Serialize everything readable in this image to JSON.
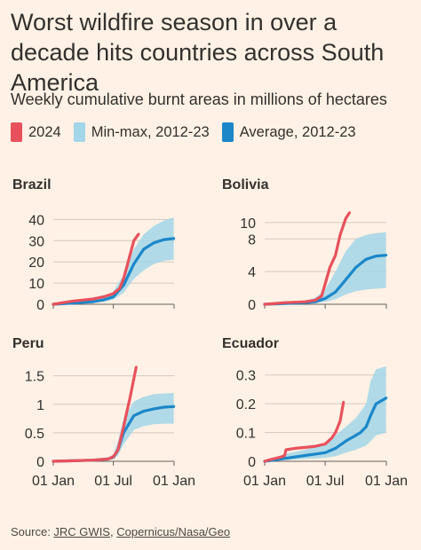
{
  "title": "Worst wildfire season in over a decade hits countries across South America",
  "subtitle": "Weekly cumulative burnt areas in millions of hectares",
  "colors": {
    "series_2024": "#e8515c",
    "minmax": "#a2d6e8",
    "average": "#1b87c9",
    "grid": "#d3c9c0",
    "background": "#fff1e5"
  },
  "legend": [
    {
      "label": "2024",
      "color": "#e8515c"
    },
    {
      "label": "Min-max, 2012-23",
      "color": "#a2d6e8"
    },
    {
      "label": "Average, 2012-23",
      "color": "#1b87c9"
    }
  ],
  "source": {
    "prefix": "Source: ",
    "link1": "JRC GWIS",
    "sep": ", ",
    "link2": "Copernicus/Nasa/Geo"
  },
  "chart_data": [
    {
      "type": "line",
      "title": "Brazil",
      "x_ticks": [
        "01 Jan",
        "01 Jul",
        "01 Jan"
      ],
      "x_range": [
        "2024-01-01",
        "2025-01-01"
      ],
      "y_ticks": [
        "0",
        "10",
        "20",
        "30",
        "40"
      ],
      "y_tick_values": [
        0,
        10,
        20,
        30,
        40
      ],
      "ylim": [
        0,
        41
      ],
      "series": [
        {
          "name": "2024",
          "x": [
            "2024-01-01",
            "2024-02-01",
            "2024-03-01",
            "2024-04-01",
            "2024-05-01",
            "2024-06-01",
            "2024-07-01",
            "2024-07-20",
            "2024-08-01",
            "2024-08-15",
            "2024-09-01",
            "2024-09-15"
          ],
          "values": [
            0.0,
            0.8,
            1.5,
            2.0,
            2.5,
            3.5,
            5.0,
            7.5,
            12.0,
            20.0,
            30.0,
            33.0
          ]
        },
        {
          "name": "Average, 2012-23",
          "x": [
            "2024-01-01",
            "2024-02-01",
            "2024-03-01",
            "2024-04-01",
            "2024-05-01",
            "2024-06-01",
            "2024-07-01",
            "2024-08-01",
            "2024-09-01",
            "2024-10-01",
            "2024-11-01",
            "2024-12-01",
            "2024-12-31"
          ],
          "values": [
            0.0,
            0.3,
            0.6,
            0.9,
            1.2,
            2.0,
            3.5,
            9.0,
            19.0,
            26.0,
            29.0,
            30.5,
            31.0
          ]
        },
        {
          "name": "Min-max, 2012-23",
          "x": [
            "2024-01-01",
            "2024-03-01",
            "2024-05-01",
            "2024-06-01",
            "2024-07-01",
            "2024-08-01",
            "2024-09-01",
            "2024-10-01",
            "2024-11-01",
            "2024-12-01",
            "2024-12-31"
          ],
          "min": [
            0.0,
            0.3,
            0.8,
            1.3,
            2.2,
            5.5,
            12.0,
            16.0,
            19.0,
            20.5,
            21.0
          ],
          "max": [
            0.0,
            0.9,
            1.8,
            3.0,
            6.0,
            14.0,
            26.0,
            33.0,
            37.0,
            39.5,
            41.0
          ]
        }
      ]
    },
    {
      "type": "line",
      "title": "Bolivia",
      "x_ticks": [
        "01 Jan",
        "01 Jul",
        "01 Jan"
      ],
      "x_range": [
        "2024-01-01",
        "2025-01-01"
      ],
      "y_ticks": [
        "0",
        "4",
        "8",
        "10"
      ],
      "y_tick_values": [
        0,
        4,
        8,
        10
      ],
      "ylim": [
        0,
        11.5
      ],
      "series": [
        {
          "name": "2024",
          "x": [
            "2024-01-01",
            "2024-02-01",
            "2024-03-01",
            "2024-04-01",
            "2024-05-01",
            "2024-06-01",
            "2024-06-20",
            "2024-07-01",
            "2024-07-15",
            "2024-08-01",
            "2024-08-15",
            "2024-09-01",
            "2024-09-12"
          ],
          "values": [
            0.0,
            0.1,
            0.2,
            0.25,
            0.3,
            0.5,
            1.0,
            2.5,
            4.5,
            6.0,
            8.5,
            10.5,
            11.2
          ]
        },
        {
          "name": "Average, 2012-23",
          "x": [
            "2024-01-01",
            "2024-03-01",
            "2024-05-01",
            "2024-06-01",
            "2024-07-01",
            "2024-08-01",
            "2024-09-01",
            "2024-10-01",
            "2024-11-01",
            "2024-12-01",
            "2024-12-31"
          ],
          "values": [
            0.0,
            0.1,
            0.2,
            0.3,
            0.7,
            1.5,
            3.0,
            4.5,
            5.5,
            5.9,
            6.0
          ]
        },
        {
          "name": "Min-max, 2012-23",
          "x": [
            "2024-01-01",
            "2024-03-01",
            "2024-05-01",
            "2024-06-01",
            "2024-07-01",
            "2024-08-01",
            "2024-09-01",
            "2024-10-01",
            "2024-11-01",
            "2024-12-01",
            "2024-12-31"
          ],
          "min": [
            0.0,
            0.05,
            0.1,
            0.15,
            0.3,
            0.6,
            1.2,
            1.6,
            1.8,
            1.9,
            2.0
          ],
          "max": [
            0.0,
            0.2,
            0.4,
            0.8,
            1.8,
            4.0,
            6.5,
            8.0,
            8.5,
            8.7,
            8.8
          ]
        }
      ]
    },
    {
      "type": "line",
      "title": "Peru",
      "x_ticks": [
        "01 Jan",
        "01 Jul",
        "01 Jan"
      ],
      "x_range": [
        "2024-01-01",
        "2025-01-01"
      ],
      "y_ticks": [
        "0",
        "0.5",
        "1",
        "1.5"
      ],
      "y_tick_values": [
        0,
        0.5,
        1,
        1.5
      ],
      "ylim": [
        0,
        1.65
      ],
      "series": [
        {
          "name": "2024",
          "x": [
            "2024-01-01",
            "2024-03-01",
            "2024-05-01",
            "2024-06-15",
            "2024-07-01",
            "2024-07-15",
            "2024-08-01",
            "2024-08-10",
            "2024-08-20",
            "2024-09-01",
            "2024-09-08"
          ],
          "values": [
            0.0,
            0.01,
            0.02,
            0.04,
            0.08,
            0.2,
            0.6,
            0.85,
            1.1,
            1.45,
            1.65
          ]
        },
        {
          "name": "Average, 2012-23",
          "x": [
            "2024-01-01",
            "2024-03-01",
            "2024-05-01",
            "2024-06-15",
            "2024-07-01",
            "2024-07-15",
            "2024-08-01",
            "2024-09-01",
            "2024-10-01",
            "2024-11-01",
            "2024-12-01",
            "2024-12-31"
          ],
          "values": [
            0.0,
            0.01,
            0.02,
            0.04,
            0.07,
            0.2,
            0.5,
            0.8,
            0.88,
            0.92,
            0.95,
            0.96
          ]
        },
        {
          "name": "Min-max, 2012-23",
          "x": [
            "2024-01-01",
            "2024-03-01",
            "2024-05-01",
            "2024-06-15",
            "2024-07-01",
            "2024-07-15",
            "2024-08-01",
            "2024-09-01",
            "2024-10-01",
            "2024-11-01",
            "2024-12-01",
            "2024-12-31"
          ],
          "min": [
            0.0,
            0.005,
            0.01,
            0.02,
            0.04,
            0.1,
            0.3,
            0.55,
            0.62,
            0.65,
            0.66,
            0.66
          ],
          "max": [
            0.0,
            0.02,
            0.04,
            0.07,
            0.12,
            0.35,
            0.75,
            1.05,
            1.13,
            1.18,
            1.19,
            1.2
          ]
        }
      ]
    },
    {
      "type": "line",
      "title": "Ecuador",
      "x_ticks": [
        "01 Jan",
        "01 Jul",
        "01 Jan"
      ],
      "x_range": [
        "2024-01-01",
        "2025-01-01"
      ],
      "y_ticks": [
        "0",
        "0.1",
        "0.2",
        "0.3"
      ],
      "y_tick_values": [
        0,
        0.1,
        0.2,
        0.3
      ],
      "ylim": [
        0,
        0.33
      ],
      "series": [
        {
          "name": "2024",
          "x": [
            "2024-01-01",
            "2024-01-15",
            "2024-02-01",
            "2024-02-20",
            "2024-03-01",
            "2024-03-05",
            "2024-04-01",
            "2024-05-01",
            "2024-06-01",
            "2024-07-01",
            "2024-07-20",
            "2024-08-01",
            "2024-08-15",
            "2024-08-25"
          ],
          "values": [
            0.0,
            0.005,
            0.01,
            0.015,
            0.02,
            0.04,
            0.045,
            0.048,
            0.052,
            0.06,
            0.08,
            0.1,
            0.14,
            0.205
          ]
        },
        {
          "name": "Average, 2012-23",
          "x": [
            "2024-01-01",
            "2024-03-01",
            "2024-05-01",
            "2024-07-01",
            "2024-08-01",
            "2024-09-01",
            "2024-09-15",
            "2024-10-01",
            "2024-10-15",
            "2024-11-01",
            "2024-11-15",
            "2024-12-01",
            "2024-12-31"
          ],
          "values": [
            0.0,
            0.01,
            0.02,
            0.03,
            0.045,
            0.07,
            0.08,
            0.09,
            0.1,
            0.12,
            0.16,
            0.2,
            0.22
          ]
        },
        {
          "name": "Min-max, 2012-23",
          "x": [
            "2024-01-01",
            "2024-03-01",
            "2024-05-01",
            "2024-07-01",
            "2024-08-01",
            "2024-09-01",
            "2024-10-01",
            "2024-11-01",
            "2024-11-15",
            "2024-12-01",
            "2024-12-31"
          ],
          "min": [
            0.0,
            0.004,
            0.008,
            0.012,
            0.018,
            0.03,
            0.04,
            0.055,
            0.07,
            0.09,
            0.1
          ],
          "max": [
            0.0,
            0.025,
            0.04,
            0.06,
            0.09,
            0.12,
            0.15,
            0.2,
            0.28,
            0.32,
            0.33
          ]
        }
      ]
    }
  ]
}
